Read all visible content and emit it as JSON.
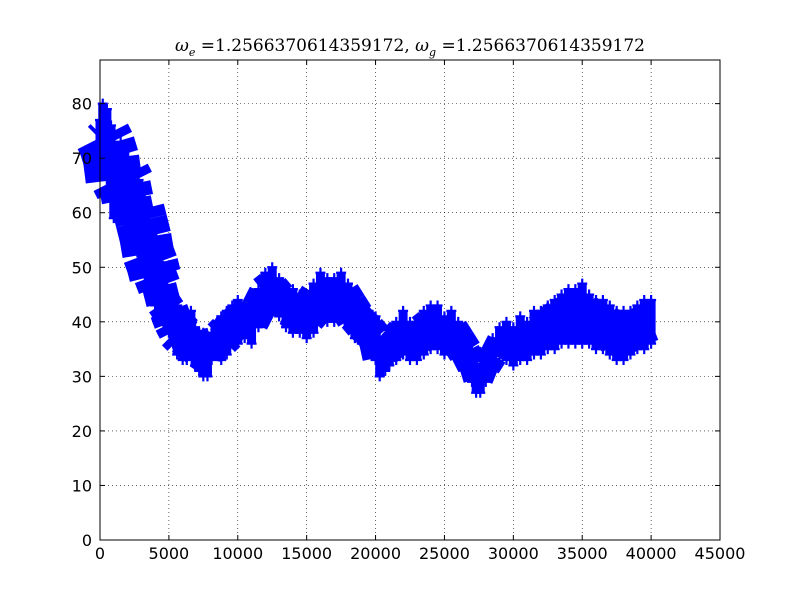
{
  "chart_data": {
    "type": "scatter",
    "title": {
      "omega_e_symbol": "ω",
      "omega_e_sub": "e",
      "omega_e_value": " =1.2566370614359172, ",
      "omega_g_symbol": "ω",
      "omega_g_sub": "g",
      "omega_g_value": " =1.2566370614359172"
    },
    "xlabel": "",
    "ylabel": "",
    "xlim": [
      0,
      45000
    ],
    "ylim": [
      0,
      88
    ],
    "xticks": [
      0,
      5000,
      10000,
      15000,
      20000,
      25000,
      30000,
      35000,
      40000,
      45000
    ],
    "xtick_labels": [
      "0",
      "5000",
      "10000",
      "15000",
      "20000",
      "25000",
      "30000",
      "35000",
      "40000",
      "45000"
    ],
    "yticks": [
      0,
      10,
      20,
      30,
      40,
      50,
      60,
      70,
      80
    ],
    "ytick_labels": [
      "0",
      "10",
      "20",
      "30",
      "40",
      "50",
      "60",
      "70",
      "80"
    ],
    "grid": true,
    "marker": "+",
    "series_color": "#0000ff",
    "series": [
      {
        "points": [
          [
            0,
            70,
            77
          ],
          [
            200,
            68,
            80
          ],
          [
            500,
            66,
            79
          ],
          [
            800,
            64,
            76
          ],
          [
            1000,
            59,
            73
          ],
          [
            1200,
            62,
            69
          ],
          [
            1500,
            60,
            73
          ],
          [
            1800,
            58,
            72
          ],
          [
            2000,
            57,
            68
          ],
          [
            2300,
            57,
            68
          ],
          [
            2500,
            56,
            64
          ],
          [
            2800,
            55,
            66
          ],
          [
            3000,
            52,
            65
          ],
          [
            3300,
            50,
            61
          ],
          [
            3500,
            47,
            58
          ],
          [
            3800,
            45,
            56
          ],
          [
            4000,
            43,
            54
          ],
          [
            4300,
            42,
            51
          ],
          [
            4600,
            40,
            47
          ],
          [
            5000,
            38,
            46
          ],
          [
            5300,
            36,
            44
          ],
          [
            5600,
            34,
            43
          ],
          [
            6000,
            33,
            42
          ],
          [
            6300,
            33,
            41
          ],
          [
            6600,
            34,
            42
          ],
          [
            6900,
            32,
            39
          ],
          [
            7200,
            31,
            38
          ],
          [
            7500,
            30,
            38
          ],
          [
            7800,
            30,
            37
          ],
          [
            8100,
            33,
            38
          ],
          [
            8400,
            34,
            39
          ],
          [
            8800,
            33,
            41
          ],
          [
            9200,
            34,
            42
          ],
          [
            9600,
            36,
            43
          ],
          [
            10000,
            36,
            44
          ],
          [
            10500,
            37,
            43
          ],
          [
            11000,
            36,
            44
          ],
          [
            11500,
            39,
            46
          ],
          [
            12000,
            41,
            49
          ],
          [
            12500,
            42,
            50
          ],
          [
            13000,
            41,
            48
          ],
          [
            13500,
            39,
            46
          ],
          [
            14000,
            38,
            46
          ],
          [
            14500,
            38,
            45
          ],
          [
            15000,
            37,
            45
          ],
          [
            15500,
            38,
            47
          ],
          [
            16000,
            40,
            49
          ],
          [
            16500,
            40,
            48
          ],
          [
            17000,
            40,
            48
          ],
          [
            17500,
            41,
            49
          ],
          [
            18000,
            39,
            47
          ],
          [
            18500,
            37,
            45
          ],
          [
            19000,
            36,
            43
          ],
          [
            19500,
            35,
            42
          ],
          [
            20000,
            33,
            41
          ],
          [
            20300,
            30,
            37
          ],
          [
            20700,
            31,
            36
          ],
          [
            21000,
            32,
            38
          ],
          [
            21500,
            33,
            40
          ],
          [
            22000,
            34,
            42
          ],
          [
            22500,
            33,
            40
          ],
          [
            23000,
            33,
            40
          ],
          [
            23500,
            34,
            42
          ],
          [
            24000,
            35,
            43
          ],
          [
            24500,
            35,
            43
          ],
          [
            25000,
            34,
            41
          ],
          [
            25500,
            35,
            42
          ],
          [
            26000,
            33,
            40
          ],
          [
            26500,
            31,
            38
          ],
          [
            27000,
            29,
            35
          ],
          [
            27300,
            27,
            32
          ],
          [
            27600,
            27,
            32
          ],
          [
            28000,
            29,
            35
          ],
          [
            28500,
            31,
            37
          ],
          [
            29000,
            34,
            39
          ],
          [
            29500,
            33,
            40
          ],
          [
            30000,
            32,
            39
          ],
          [
            30500,
            33,
            41
          ],
          [
            31000,
            33,
            40
          ],
          [
            31500,
            34,
            42
          ],
          [
            32000,
            34,
            42
          ],
          [
            32500,
            35,
            43
          ],
          [
            33000,
            35,
            44
          ],
          [
            33500,
            36,
            45
          ],
          [
            34000,
            36,
            46
          ],
          [
            34500,
            36,
            46
          ],
          [
            35000,
            36,
            47
          ],
          [
            35500,
            36,
            45
          ],
          [
            36000,
            35,
            44
          ],
          [
            36500,
            35,
            44
          ],
          [
            37000,
            34,
            43
          ],
          [
            37500,
            33,
            42
          ],
          [
            38000,
            33,
            42
          ],
          [
            38500,
            34,
            42
          ],
          [
            39000,
            35,
            43
          ],
          [
            39500,
            35,
            44
          ],
          [
            40000,
            36,
            44
          ]
        ]
      }
    ]
  }
}
